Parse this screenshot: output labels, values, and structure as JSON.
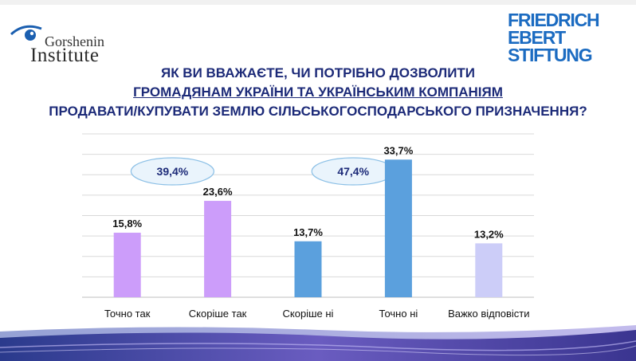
{
  "logos": {
    "gorshenin": {
      "name": "Gorshenin",
      "institute": "Institute"
    },
    "fes": {
      "line1": "FRIEDRICH",
      "line2": "EBERT",
      "line3": "STIFTUNG"
    }
  },
  "colors": {
    "title": "#1c2a78",
    "bar_purple": "#cc9dfa",
    "bar_blue": "#5ba0dd",
    "bar_lavender": "#cccdf8",
    "gridline": "#d9d9d9",
    "ellipse_fill": "#eaf4fc",
    "ellipse_stroke": "#8cc0e6"
  },
  "chart_data": {
    "type": "bar",
    "title_lines": [
      "ЯК ВИ ВВАЖАЄТЕ, ЧИ ПОТРІБНО ДОЗВОЛИТИ",
      "ГРОМАДЯНАМ УКРАЇНИ ТА УКРАЇНСЬКИМ КОМПАНІЯМ",
      "ПРОДАВАТИ/КУПУВАТИ ЗЕМЛЮ СІЛЬСЬКОГОСПОДАРСЬКОГО ПРИЗНАЧЕННЯ?"
    ],
    "categories": [
      "Точно так",
      "Скоріше так",
      "Скоріше ні",
      "Точно ні",
      "Важко відповісти"
    ],
    "values": [
      15.8,
      23.6,
      13.7,
      33.7,
      13.2
    ],
    "value_labels": [
      "15,8%",
      "23,6%",
      "13,7%",
      "33,7%",
      "13,2%"
    ],
    "bar_colors": [
      "#cc9dfa",
      "#cc9dfa",
      "#5ba0dd",
      "#5ba0dd",
      "#cccdf8"
    ],
    "ylim": [
      0,
      40
    ],
    "grid": true,
    "annotations": [
      {
        "label": "39,4%",
        "covers": [
          "Точно так",
          "Скоріше так"
        ]
      },
      {
        "label": "47,4%",
        "covers": [
          "Скоріше ні",
          "Точно ні"
        ]
      }
    ]
  }
}
